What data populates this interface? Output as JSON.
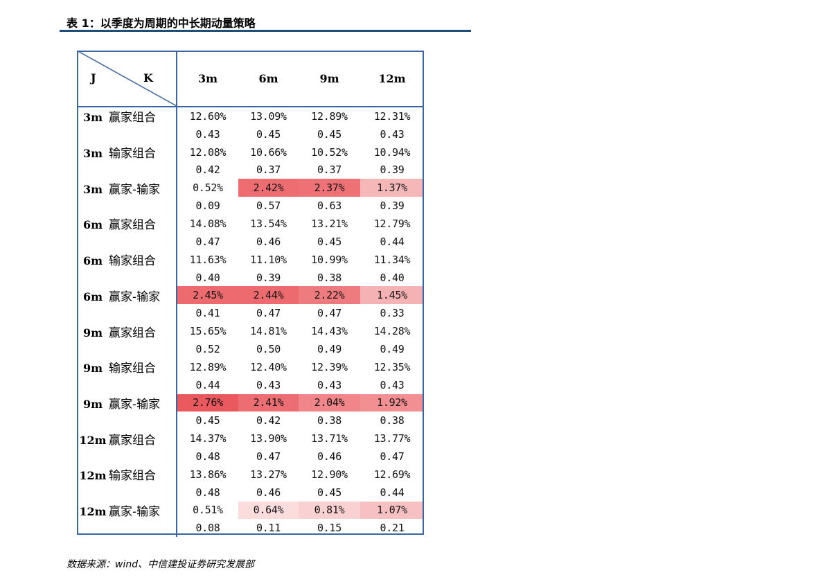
{
  "title": "表 1：以季度为周期的中长期动量策略",
  "source": "数据来源：wind、中信建投证券研究发展部",
  "table": {
    "corner": {
      "row_header": "J",
      "col_header": "K"
    },
    "columns": [
      "3m",
      "6m",
      "9m",
      "12m"
    ],
    "heat_color": "#e8474c",
    "rows": [
      {
        "period": "3m",
        "portfolio": "赢家组合",
        "values": [
          "12.60%",
          "13.09%",
          "12.89%",
          "12.31%"
        ],
        "tstats": [
          "0.43",
          "0.45",
          "0.45",
          "0.43"
        ],
        "heat": [
          0,
          0,
          0,
          0
        ]
      },
      {
        "period": "3m",
        "portfolio": "输家组合",
        "values": [
          "12.08%",
          "10.66%",
          "10.52%",
          "10.94%"
        ],
        "tstats": [
          "0.42",
          "0.37",
          "0.37",
          "0.39"
        ],
        "heat": [
          0,
          0,
          0,
          0
        ]
      },
      {
        "period": "3m",
        "portfolio": "赢家-输家",
        "values": [
          "0.52%",
          "2.42%",
          "2.37%",
          "1.37%"
        ],
        "tstats": [
          "0.09",
          "0.57",
          "0.63",
          "0.39"
        ],
        "heat": [
          0.0,
          0.86,
          0.83,
          0.32
        ]
      },
      {
        "period": "6m",
        "portfolio": "赢家组合",
        "values": [
          "14.08%",
          "13.54%",
          "13.21%",
          "12.79%"
        ],
        "tstats": [
          "0.47",
          "0.46",
          "0.45",
          "0.44"
        ],
        "heat": [
          0,
          0,
          0,
          0
        ]
      },
      {
        "period": "6m",
        "portfolio": "输家组合",
        "values": [
          "11.63%",
          "11.10%",
          "10.99%",
          "11.34%"
        ],
        "tstats": [
          "0.40",
          "0.39",
          "0.38",
          "0.40"
        ],
        "heat": [
          0,
          0,
          0,
          0
        ]
      },
      {
        "period": "6m",
        "portfolio": "赢家-输家",
        "values": [
          "2.45%",
          "2.44%",
          "2.22%",
          "1.45%"
        ],
        "tstats": [
          "0.41",
          "0.47",
          "0.47",
          "0.33"
        ],
        "heat": [
          0.87,
          0.87,
          0.76,
          0.36
        ]
      },
      {
        "period": "9m",
        "portfolio": "赢家组合",
        "values": [
          "15.65%",
          "14.81%",
          "14.43%",
          "14.28%"
        ],
        "tstats": [
          "0.52",
          "0.50",
          "0.49",
          "0.49"
        ],
        "heat": [
          0,
          0,
          0,
          0
        ]
      },
      {
        "period": "9m",
        "portfolio": "输家组合",
        "values": [
          "12.89%",
          "12.40%",
          "12.39%",
          "12.35%"
        ],
        "tstats": [
          "0.44",
          "0.43",
          "0.43",
          "0.43"
        ],
        "heat": [
          0,
          0,
          0,
          0
        ]
      },
      {
        "period": "9m",
        "portfolio": "赢家-输家",
        "values": [
          "2.76%",
          "2.41%",
          "2.04%",
          "1.92%"
        ],
        "tstats": [
          "0.45",
          "0.42",
          "0.38",
          "0.38"
        ],
        "heat": [
          1.0,
          0.85,
          0.68,
          0.61
        ]
      },
      {
        "period": "12m",
        "portfolio": "赢家组合",
        "values": [
          "14.37%",
          "13.90%",
          "13.71%",
          "13.77%"
        ],
        "tstats": [
          "0.48",
          "0.47",
          "0.46",
          "0.47"
        ],
        "heat": [
          0,
          0,
          0,
          0
        ]
      },
      {
        "period": "12m",
        "portfolio": "输家组合",
        "values": [
          "13.86%",
          "13.27%",
          "12.90%",
          "12.69%"
        ],
        "tstats": [
          "0.48",
          "0.46",
          "0.45",
          "0.44"
        ],
        "heat": [
          0,
          0,
          0,
          0
        ]
      },
      {
        "period": "12m",
        "portfolio": "赢家-输家",
        "values": [
          "0.51%",
          "0.64%",
          "0.81%",
          "1.07%"
        ],
        "tstats": [
          "0.08",
          "0.11",
          "0.15",
          "0.21"
        ],
        "heat": [
          0.0,
          0.05,
          0.13,
          0.25
        ]
      }
    ]
  }
}
